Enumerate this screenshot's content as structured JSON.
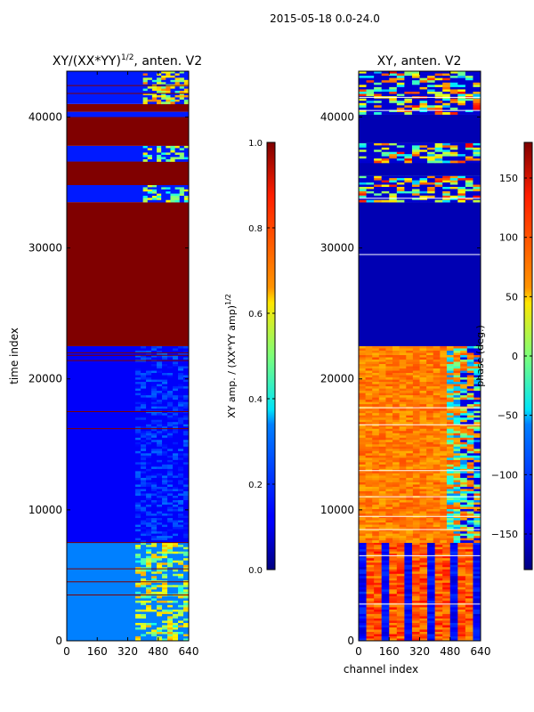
{
  "figure": {
    "suptitle": "2015-05-18 0.0-24.0"
  },
  "chart_data": [
    {
      "type": "heatmap",
      "title": "XY/(XX*YY)^{1/2}, anten. V2",
      "title_main": "XY/(XX*YY)",
      "title_sup": "1/2",
      "title_tail": ", anten. V2",
      "xlabel": "",
      "ylabel": "time index",
      "x_ticks": [
        0,
        160,
        320,
        480,
        640
      ],
      "y_ticks": [
        0,
        10000,
        20000,
        30000,
        40000
      ],
      "xlim": [
        0,
        640
      ],
      "ylim": [
        0,
        43500
      ],
      "colormap": "jet",
      "colorbar": {
        "label": "XY amp. / (XX*YY amp)^{1/2}",
        "label_main": "XY amp. / (XX*YY amp)",
        "label_sup": "1/2",
        "range": [
          0.0,
          1.0
        ],
        "ticks": [
          0.0,
          0.2,
          0.4,
          0.6,
          0.8,
          1.0
        ],
        "tick_labels": [
          "0.0",
          "0.2",
          "0.4",
          "0.6",
          "0.8",
          "1.0"
        ]
      },
      "regions": [
        {
          "y0": 0,
          "y1": 7500,
          "value": 0.25,
          "bright_channels": [
            360,
            640
          ],
          "bright_value": 0.55
        },
        {
          "y0": 7500,
          "y1": 22500,
          "value": 0.12,
          "bright_channels": [
            360,
            640
          ],
          "bright_value": 0.18
        },
        {
          "y0": 22500,
          "y1": 33500,
          "value": 1.0
        },
        {
          "y0": 33500,
          "y1": 34800,
          "value": 0.15,
          "bright_channels": [
            400,
            640
          ],
          "bright_value": 0.5
        },
        {
          "y0": 34800,
          "y1": 36600,
          "value": 1.0
        },
        {
          "y0": 36600,
          "y1": 37800,
          "value": 0.15,
          "bright_channels": [
            400,
            640
          ],
          "bright_value": 0.5
        },
        {
          "y0": 37800,
          "y1": 40000,
          "value": 1.0
        },
        {
          "y0": 40000,
          "y1": 40400,
          "value": 0.15
        },
        {
          "y0": 40400,
          "y1": 41000,
          "value": 1.0
        },
        {
          "y0": 41000,
          "y1": 43500,
          "value": 0.15,
          "bright_channels": [
            400,
            640
          ],
          "bright_value": 0.6
        }
      ],
      "lines": [
        {
          "y": 3500,
          "value": 1.0
        },
        {
          "y": 4500,
          "value": 1.0
        },
        {
          "y": 5500,
          "value": 1.0
        },
        {
          "y": 7500,
          "value": 1.0
        },
        {
          "y": 16200,
          "value": 1.0
        },
        {
          "y": 17500,
          "value": 1.0
        },
        {
          "y": 21400,
          "value": 1.0
        },
        {
          "y": 21800,
          "value": 1.0
        },
        {
          "y": 22000,
          "value": 1.0
        },
        {
          "y": 41800,
          "value": 1.0
        },
        {
          "y": 42400,
          "value": 1.0
        }
      ]
    },
    {
      "type": "heatmap",
      "title": "XY, anten. V2",
      "xlabel": "channel index",
      "ylabel": "",
      "x_ticks": [
        0,
        160,
        320,
        480,
        640
      ],
      "y_ticks": [
        0,
        10000,
        20000,
        30000,
        40000
      ],
      "xlim": [
        0,
        640
      ],
      "ylim": [
        0,
        43500
      ],
      "colormap": "jet",
      "colorbar": {
        "label": "phase (deg.)",
        "range": [
          -180,
          180
        ],
        "ticks": [
          -150,
          -100,
          -50,
          0,
          50,
          100,
          150
        ],
        "tick_labels": [
          "−150",
          "−100",
          "−50",
          "0",
          "50",
          "100",
          "150"
        ]
      },
      "regions": [
        {
          "y0": 0,
          "y1": 7500,
          "value": 0,
          "pattern": "stripes_blue_orange"
        },
        {
          "y0": 7500,
          "y1": 22500,
          "value": 0.72,
          "pattern": "orange_with_blue_right"
        },
        {
          "y0": 22500,
          "y1": 33500,
          "value": 0.05
        },
        {
          "y0": 33500,
          "y1": 35500,
          "value": 0.4,
          "pattern": "mixed"
        },
        {
          "y0": 35500,
          "y1": 36500,
          "value": 0.05
        },
        {
          "y0": 36500,
          "y1": 38000,
          "value": 0.5,
          "pattern": "mixed"
        },
        {
          "y0": 38000,
          "y1": 40200,
          "value": 0.05
        },
        {
          "y0": 40200,
          "y1": 43500,
          "value": 0.55,
          "pattern": "mixed"
        }
      ],
      "lines": [
        {
          "y": 2800,
          "value": 1.0
        },
        {
          "y": 6500,
          "value": 1.0
        },
        {
          "y": 8500,
          "value": 1.0
        },
        {
          "y": 9500,
          "value": 1.0
        },
        {
          "y": 11000,
          "value": 1.0
        },
        {
          "y": 13000,
          "value": 1.0
        },
        {
          "y": 16500,
          "value": 1.0
        },
        {
          "y": 17800,
          "value": 1.0
        },
        {
          "y": 29500,
          "value": 0.9
        },
        {
          "y": 33800,
          "value": 1.0
        },
        {
          "y": 40500,
          "value": 1.0
        },
        {
          "y": 41500,
          "value": 1.0
        }
      ]
    }
  ]
}
